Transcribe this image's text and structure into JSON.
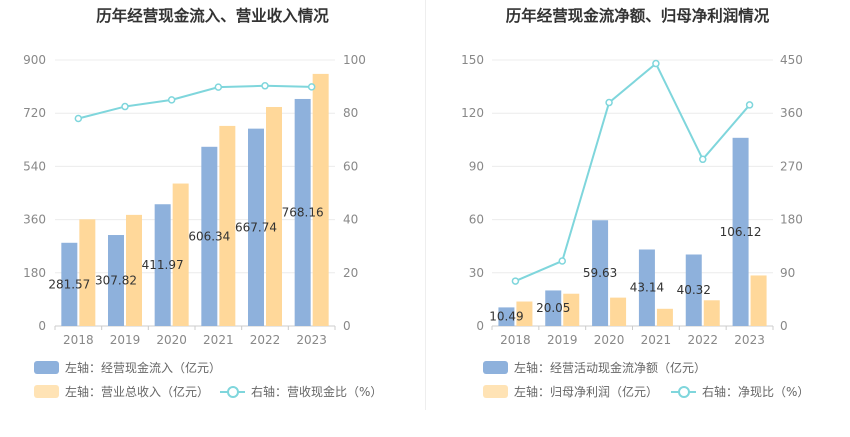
{
  "colors": {
    "series1": "#8eb1dc",
    "series2": "#ffd89a",
    "line": "#7fd6dc",
    "axis": "#cccccc",
    "grid": "#ececec"
  },
  "chart_data": [
    {
      "type": "bar",
      "title": "历年经营现金流入、营业收入情况",
      "categories": [
        "2018",
        "2019",
        "2020",
        "2021",
        "2022",
        "2023"
      ],
      "left_axis": {
        "ticks": [
          "0",
          "180",
          "360",
          "540",
          "720",
          "900"
        ],
        "ylim": [
          0,
          900
        ]
      },
      "right_axis": {
        "ticks": [
          "0",
          "20",
          "40",
          "60",
          "80",
          "100"
        ],
        "ylim": [
          0,
          100
        ]
      },
      "series": [
        {
          "name": "左轴：经营现金流入（亿元）",
          "kind": "bar",
          "axis": "left",
          "values": [
            281.57,
            307.82,
            411.97,
            606.34,
            667.74,
            768.16
          ],
          "labels": [
            "281.57",
            "307.82",
            "411.97",
            "606.34",
            "667.74",
            "768.16"
          ]
        },
        {
          "name": "左轴：营业总收入（亿元）",
          "kind": "bar",
          "axis": "left",
          "values": [
            361,
            376,
            482,
            677,
            741,
            853
          ]
        },
        {
          "name": "右轴：营收现金比（%）",
          "kind": "line",
          "axis": "right",
          "values": [
            78,
            82.5,
            85,
            89.8,
            90.3,
            89.9
          ]
        }
      ],
      "legend": [
        "左轴：经营现金流入（亿元）",
        "左轴：营业总收入（亿元）",
        "右轴：营收现金比（%）"
      ],
      "legend_position": "bottom",
      "grid": true
    },
    {
      "type": "bar",
      "title": "历年经营现金流净额、归母净利润情况",
      "categories": [
        "2018",
        "2019",
        "2020",
        "2021",
        "2022",
        "2023"
      ],
      "left_axis": {
        "ticks": [
          "0",
          "30",
          "60",
          "90",
          "120",
          "150"
        ],
        "ylim": [
          0,
          150
        ]
      },
      "right_axis": {
        "ticks": [
          "0",
          "90",
          "180",
          "270",
          "360",
          "450"
        ],
        "ylim": [
          0,
          450
        ]
      },
      "series": [
        {
          "name": "左轴：经营活动现金流净额（亿元）",
          "kind": "bar",
          "axis": "left",
          "values": [
            10.49,
            20.05,
            59.63,
            43.14,
            40.32,
            106.12
          ],
          "labels": [
            "10.49",
            "20.05",
            "59.63",
            "43.14",
            "40.32",
            "106.12"
          ]
        },
        {
          "name": "左轴：归母净利润（亿元）",
          "kind": "bar",
          "axis": "left",
          "values": [
            13.8,
            18.2,
            16.0,
            9.7,
            14.5,
            28.5
          ]
        },
        {
          "name": "右轴：净现比（%）",
          "kind": "line",
          "axis": "right",
          "values": [
            76,
            110,
            378,
            444,
            282,
            374
          ]
        }
      ],
      "legend": [
        "左轴：经营活动现金流净额（亿元）",
        "左轴：归母净利润（亿元）",
        "右轴：净现比（%）"
      ],
      "legend_position": "bottom",
      "grid": true
    }
  ]
}
